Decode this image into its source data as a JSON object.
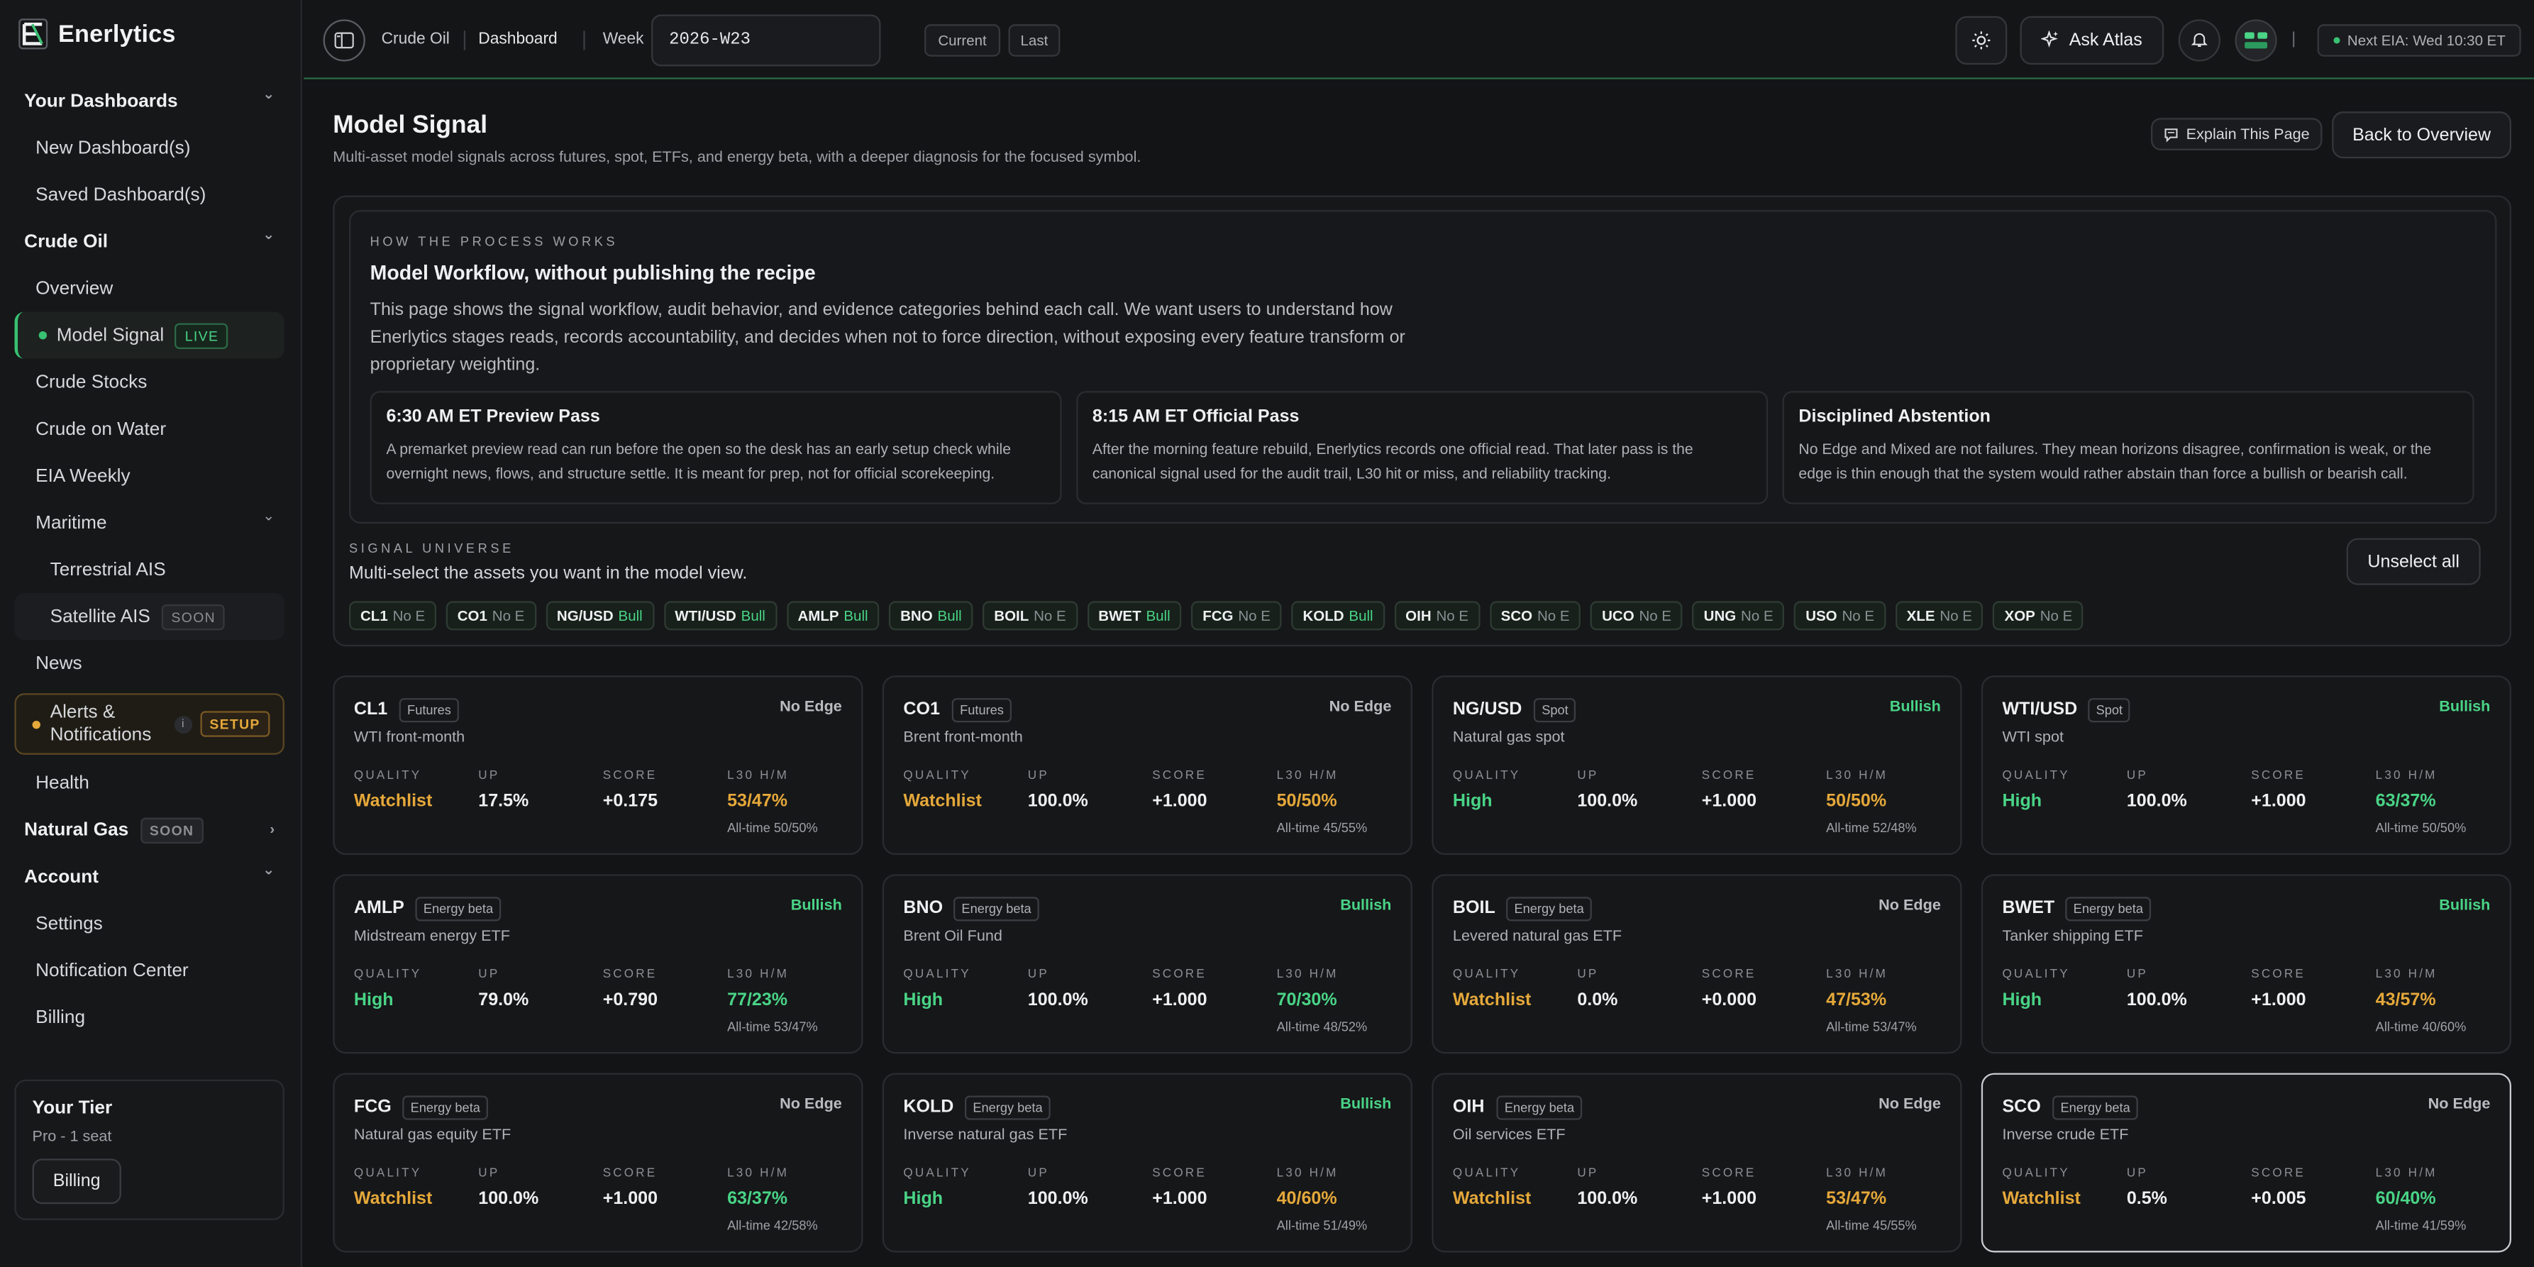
{
  "brand": {
    "name": "Enerlytics"
  },
  "colors": {
    "accent": "#38c172",
    "bull": "#49d486",
    "watch": "#e5a83a"
  },
  "sidebar": {
    "sections": [
      {
        "kind": "sec",
        "label": "Your Dashboards",
        "chev": "⌄"
      },
      {
        "kind": "item",
        "label": "New Dashboard(s)"
      },
      {
        "kind": "item",
        "label": "Saved Dashboard(s)"
      },
      {
        "kind": "sec",
        "label": "Crude Oil",
        "chev": "⌄"
      },
      {
        "kind": "item",
        "label": "Overview"
      },
      {
        "kind": "item",
        "label": "Model Signal",
        "badge": "LIVE",
        "active": true
      },
      {
        "kind": "item",
        "label": "Crude Stocks"
      },
      {
        "kind": "item",
        "label": "Crude on Water"
      },
      {
        "kind": "item",
        "label": "EIA Weekly"
      },
      {
        "kind": "item",
        "label": "Maritime",
        "chev": "⌄"
      },
      {
        "kind": "sub2",
        "label": "Terrestrial AIS"
      },
      {
        "kind": "sub2",
        "label": "Satellite AIS",
        "badge": "SOON"
      },
      {
        "kind": "item",
        "label": "News"
      },
      {
        "kind": "alert",
        "label": "Alerts &\nNotifications",
        "badge": "SETUP",
        "info": "i"
      },
      {
        "kind": "item",
        "label": "Health"
      },
      {
        "kind": "sec",
        "label": "Natural Gas",
        "badge": "SOON",
        "chev": "›"
      },
      {
        "kind": "sec",
        "label": "Account",
        "chev": "⌄"
      },
      {
        "kind": "item",
        "label": "Settings"
      },
      {
        "kind": "item",
        "label": "Notification Center"
      },
      {
        "kind": "item",
        "label": "Billing"
      }
    ],
    "tier": {
      "title": "Your Tier",
      "sub": "Pro - 1 seat",
      "button": "Billing"
    }
  },
  "topbar": {
    "crumb1": "Crude Oil",
    "crumb2": "Dashboard",
    "week_label": "Week",
    "week_value": "2026-W23",
    "current": "Current",
    "last": "Last",
    "ask": "Ask Atlas",
    "sep": "|",
    "next_eia": "Next EIA: Wed 10:30 ET"
  },
  "page": {
    "title": "Model Signal",
    "subtitle": "Multi-asset model signals across futures, spot, ETFs, and energy beta, with a deeper diagnosis for the focused symbol.",
    "explain": "Explain This Page",
    "back": "Back to Overview"
  },
  "process": {
    "eyebrow": "HOW THE PROCESS WORKS",
    "title": "Model Workflow, without publishing the recipe",
    "desc": "This page shows the signal workflow, audit behavior, and evidence categories behind each call. We want users to understand how Enerlytics stages reads, records accountability, and decides when not to force direction, without exposing every feature transform or proprietary weighting.",
    "steps": [
      {
        "title": "6:30 AM ET Preview Pass",
        "desc": "A premarket preview read can run before the open so the desk has an early setup check while overnight news, flows, and structure settle. It is meant for prep, not for official scorekeeping."
      },
      {
        "title": "8:15 AM ET Official Pass",
        "desc": "After the morning feature rebuild, Enerlytics records one official read. That later pass is the canonical signal used for the audit trail, L30 hit or miss, and reliability tracking."
      },
      {
        "title": "Disciplined Abstention",
        "desc": "No Edge and Mixed are not failures. They mean horizons disagree, confirmation is weak, or the edge is thin enough that the system would rather abstain than force a bullish or bearish call."
      }
    ]
  },
  "universe": {
    "eyebrow": "SIGNAL UNIVERSE",
    "title": "Multi-select the assets you want in the model view.",
    "unselect": "Unselect all",
    "chips": [
      {
        "sym": "CL1",
        "st": "No E",
        "bull": false
      },
      {
        "sym": "CO1",
        "st": "No E",
        "bull": false
      },
      {
        "sym": "NG/USD",
        "st": "Bull",
        "bull": true
      },
      {
        "sym": "WTI/USD",
        "st": "Bull",
        "bull": true
      },
      {
        "sym": "AMLP",
        "st": "Bull",
        "bull": true
      },
      {
        "sym": "BNO",
        "st": "Bull",
        "bull": true
      },
      {
        "sym": "BOIL",
        "st": "No E",
        "bull": false
      },
      {
        "sym": "BWET",
        "st": "Bull",
        "bull": true
      },
      {
        "sym": "FCG",
        "st": "No E",
        "bull": false
      },
      {
        "sym": "KOLD",
        "st": "Bull",
        "bull": true
      },
      {
        "sym": "OIH",
        "st": "No E",
        "bull": false
      },
      {
        "sym": "SCO",
        "st": "No E",
        "bull": false
      },
      {
        "sym": "UCO",
        "st": "No E",
        "bull": false
      },
      {
        "sym": "UNG",
        "st": "No E",
        "bull": false
      },
      {
        "sym": "USO",
        "st": "No E",
        "bull": false
      },
      {
        "sym": "XLE",
        "st": "No E",
        "bull": false
      },
      {
        "sym": "XOP",
        "st": "No E",
        "bull": false
      }
    ]
  },
  "metric_labels": {
    "quality": "QUALITY",
    "up": "UP",
    "score": "SCORE",
    "l30": "L30 H/M"
  },
  "cards": [
    {
      "sym": "CL1",
      "type": "Futures",
      "signal": "No Edge",
      "bull": false,
      "name": "WTI front-month",
      "quality": "Watchlist",
      "q_color": "amber",
      "up": "17.5%",
      "score": "+0.175",
      "l30": "53/47%",
      "l30_color": "amber",
      "alltime": "All-time 50/50%"
    },
    {
      "sym": "CO1",
      "type": "Futures",
      "signal": "No Edge",
      "bull": false,
      "name": "Brent front-month",
      "quality": "Watchlist",
      "q_color": "amber",
      "up": "100.0%",
      "score": "+1.000",
      "l30": "50/50%",
      "l30_color": "amber",
      "alltime": "All-time 45/55%"
    },
    {
      "sym": "NG/USD",
      "type": "Spot",
      "signal": "Bullish",
      "bull": true,
      "name": "Natural gas spot",
      "quality": "High",
      "q_color": "green",
      "up": "100.0%",
      "score": "+1.000",
      "l30": "50/50%",
      "l30_color": "amber",
      "alltime": "All-time 52/48%"
    },
    {
      "sym": "WTI/USD",
      "type": "Spot",
      "signal": "Bullish",
      "bull": true,
      "name": "WTI spot",
      "quality": "High",
      "q_color": "green",
      "up": "100.0%",
      "score": "+1.000",
      "l30": "63/37%",
      "l30_color": "green",
      "alltime": "All-time 50/50%"
    },
    {
      "sym": "AMLP",
      "type": "Energy beta",
      "signal": "Bullish",
      "bull": true,
      "name": "Midstream energy ETF",
      "quality": "High",
      "q_color": "green",
      "up": "79.0%",
      "score": "+0.790",
      "l30": "77/23%",
      "l30_color": "green",
      "alltime": "All-time 53/47%"
    },
    {
      "sym": "BNO",
      "type": "Energy beta",
      "signal": "Bullish",
      "bull": true,
      "name": "Brent Oil Fund",
      "quality": "High",
      "q_color": "green",
      "up": "100.0%",
      "score": "+1.000",
      "l30": "70/30%",
      "l30_color": "green",
      "alltime": "All-time 48/52%"
    },
    {
      "sym": "BOIL",
      "type": "Energy beta",
      "signal": "No Edge",
      "bull": false,
      "name": "Levered natural gas ETF",
      "quality": "Watchlist",
      "q_color": "amber",
      "up": "0.0%",
      "score": "+0.000",
      "l30": "47/53%",
      "l30_color": "amber",
      "alltime": "All-time 53/47%"
    },
    {
      "sym": "BWET",
      "type": "Energy beta",
      "signal": "Bullish",
      "bull": true,
      "name": "Tanker shipping ETF",
      "quality": "High",
      "q_color": "green",
      "up": "100.0%",
      "score": "+1.000",
      "l30": "43/57%",
      "l30_color": "amber",
      "alltime": "All-time 40/60%"
    },
    {
      "sym": "FCG",
      "type": "Energy beta",
      "signal": "No Edge",
      "bull": false,
      "name": "Natural gas equity ETF",
      "quality": "Watchlist",
      "q_color": "amber",
      "up": "100.0%",
      "score": "+1.000",
      "l30": "63/37%",
      "l30_color": "green",
      "alltime": "All-time 42/58%"
    },
    {
      "sym": "KOLD",
      "type": "Energy beta",
      "signal": "Bullish",
      "bull": true,
      "name": "Inverse natural gas ETF",
      "quality": "High",
      "q_color": "green",
      "up": "100.0%",
      "score": "+1.000",
      "l30": "40/60%",
      "l30_color": "amber",
      "alltime": "All-time 51/49%"
    },
    {
      "sym": "OIH",
      "type": "Energy beta",
      "signal": "No Edge",
      "bull": false,
      "name": "Oil services ETF",
      "quality": "Watchlist",
      "q_color": "amber",
      "up": "100.0%",
      "score": "+1.000",
      "l30": "53/47%",
      "l30_color": "amber",
      "alltime": "All-time 45/55%"
    },
    {
      "sym": "SCO",
      "type": "Energy beta",
      "signal": "No Edge",
      "bull": false,
      "name": "Inverse crude ETF",
      "quality": "Watchlist",
      "q_color": "amber",
      "up": "0.5%",
      "score": "+0.005",
      "l30": "60/40%",
      "l30_color": "green",
      "alltime": "All-time 41/59%",
      "focus": true
    }
  ]
}
